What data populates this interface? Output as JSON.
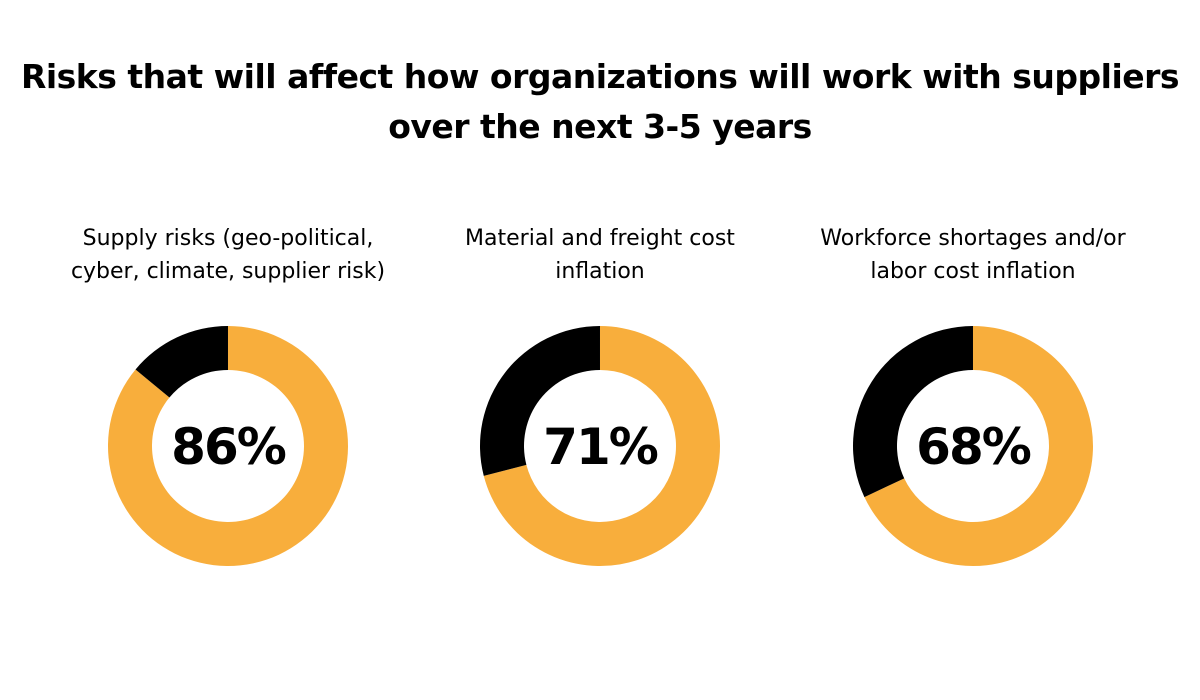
{
  "chart_data": {
    "type": "pie",
    "title": "Risks that will affect how organizations will work with suppliers over the next 3-5 years",
    "charts": [
      {
        "label": "Supply risks (geo-political, cyber, climate, supplier risk)",
        "value": 86,
        "value_label": "86%"
      },
      {
        "label": "Material and freight cost inflation",
        "value": 71,
        "value_label": "71%"
      },
      {
        "label": "Workforce shortages and/or labor cost inflation",
        "value": 68,
        "value_label": "68%"
      }
    ],
    "style": "donut",
    "colors": {
      "value": "#F8AE3C",
      "remainder": "#000000"
    }
  }
}
